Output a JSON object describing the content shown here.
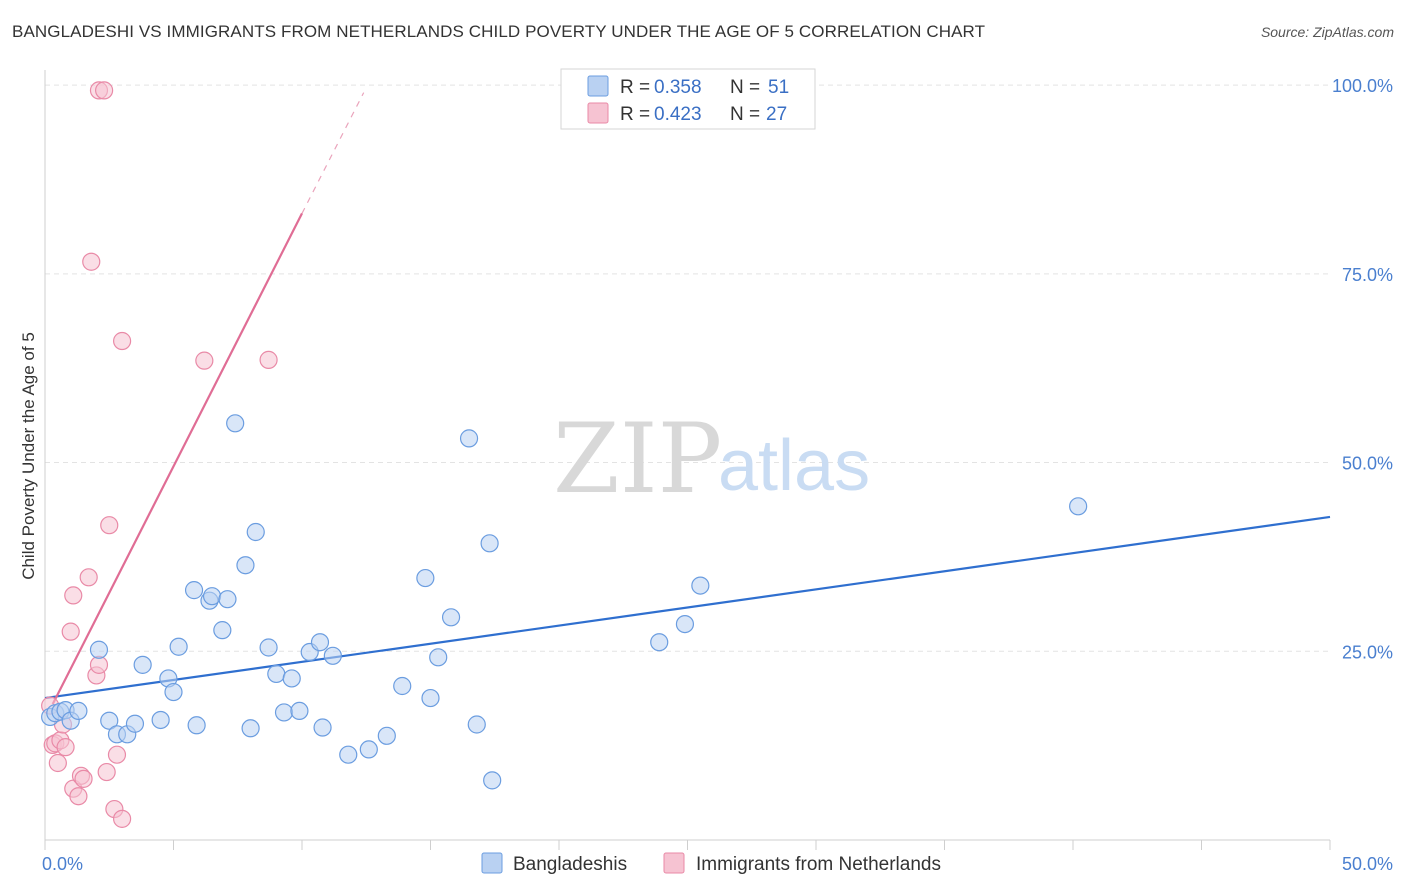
{
  "header": {
    "title": "BANGLADESHI VS IMMIGRANTS FROM NETHERLANDS CHILD POVERTY UNDER THE AGE OF 5 CORRELATION CHART",
    "source": "Source: ZipAtlas.com"
  },
  "watermark": {
    "zip": "ZIP",
    "atlas": "atlas"
  },
  "legend": {
    "series1": {
      "r_label": "R = ",
      "r_value": "0.358",
      "n_label": "N = ",
      "n_value": "51"
    },
    "series2": {
      "r_label": "R = ",
      "r_value": "0.423",
      "n_label": "N = ",
      "n_value": "27"
    }
  },
  "chart_data": {
    "type": "scatter",
    "title": "BANGLADESHI VS IMMIGRANTS FROM NETHERLANDS CHILD POVERTY UNDER THE AGE OF 5 CORRELATION CHART",
    "xlabel": "",
    "ylabel": "Child Poverty Under the Age of 5",
    "xlim": [
      0,
      50
    ],
    "ylim": [
      0,
      102
    ],
    "x_tick_labels": [
      {
        "value": 0,
        "label": "0.0%"
      },
      {
        "value": 50,
        "label": "50.0%"
      }
    ],
    "y_tick_labels": [
      {
        "value": 25,
        "label": "25.0%"
      },
      {
        "value": 50,
        "label": "50.0%"
      },
      {
        "value": 75,
        "label": "75.0%"
      },
      {
        "value": 100,
        "label": "100.0%"
      }
    ],
    "grid": true,
    "legend_position": "top-center",
    "series": [
      {
        "name": "Bangladeshis",
        "color": "#6b9de0",
        "fill": "#b9d1f2",
        "r": 0.358,
        "n": 51,
        "trend": {
          "x": [
            0,
            50
          ],
          "y": [
            18.8,
            42.8
          ]
        },
        "points": [
          [
            0.2,
            16.3
          ],
          [
            0.4,
            16.8
          ],
          [
            0.6,
            17.0
          ],
          [
            0.8,
            17.2
          ],
          [
            1.0,
            15.8
          ],
          [
            1.3,
            17.1
          ],
          [
            2.1,
            25.2
          ],
          [
            2.5,
            15.8
          ],
          [
            2.8,
            14.0
          ],
          [
            3.2,
            14.0
          ],
          [
            3.5,
            15.4
          ],
          [
            3.8,
            23.2
          ],
          [
            4.5,
            15.9
          ],
          [
            4.8,
            21.4
          ],
          [
            5.0,
            19.6
          ],
          [
            5.2,
            25.6
          ],
          [
            5.8,
            33.1
          ],
          [
            5.9,
            15.2
          ],
          [
            6.4,
            31.7
          ],
          [
            6.5,
            32.3
          ],
          [
            6.9,
            27.8
          ],
          [
            7.1,
            31.9
          ],
          [
            7.4,
            55.2
          ],
          [
            7.8,
            36.4
          ],
          [
            8.0,
            14.8
          ],
          [
            8.2,
            40.8
          ],
          [
            8.7,
            25.5
          ],
          [
            9.0,
            22.0
          ],
          [
            9.3,
            16.9
          ],
          [
            9.6,
            21.4
          ],
          [
            9.9,
            17.1
          ],
          [
            10.3,
            24.9
          ],
          [
            10.7,
            26.2
          ],
          [
            10.8,
            14.9
          ],
          [
            11.2,
            24.4
          ],
          [
            11.8,
            11.3
          ],
          [
            12.6,
            12.0
          ],
          [
            13.3,
            13.8
          ],
          [
            13.9,
            20.4
          ],
          [
            14.8,
            34.7
          ],
          [
            15.0,
            18.8
          ],
          [
            15.3,
            24.2
          ],
          [
            15.8,
            29.5
          ],
          [
            16.5,
            53.2
          ],
          [
            16.8,
            15.3
          ],
          [
            17.3,
            39.3
          ],
          [
            17.4,
            7.9
          ],
          [
            23.9,
            26.2
          ],
          [
            24.9,
            28.6
          ],
          [
            25.5,
            33.7
          ],
          [
            40.2,
            44.2
          ]
        ]
      },
      {
        "name": "Immigrants from Netherlands",
        "color": "#e98aa7",
        "fill": "#f6c3d2",
        "r": 0.423,
        "n": 27,
        "trend": {
          "x": [
            0.3,
            10.0
          ],
          "y": [
            18.0,
            83.0
          ]
        },
        "trend_dashed": {
          "x": [
            10.0,
            12.4
          ],
          "y": [
            83.0,
            99.0
          ]
        },
        "points": [
          [
            0.2,
            17.8
          ],
          [
            0.3,
            12.6
          ],
          [
            0.4,
            12.8
          ],
          [
            0.5,
            10.2
          ],
          [
            0.6,
            13.2
          ],
          [
            0.7,
            15.3
          ],
          [
            0.8,
            12.3
          ],
          [
            1.0,
            27.6
          ],
          [
            1.1,
            6.8
          ],
          [
            1.1,
            32.4
          ],
          [
            1.3,
            5.8
          ],
          [
            1.4,
            8.5
          ],
          [
            1.5,
            8.1
          ],
          [
            1.7,
            34.8
          ],
          [
            1.8,
            76.6
          ],
          [
            2.0,
            21.8
          ],
          [
            2.1,
            23.2
          ],
          [
            2.1,
            99.3
          ],
          [
            2.3,
            99.3
          ],
          [
            2.4,
            9.0
          ],
          [
            2.5,
            41.7
          ],
          [
            2.7,
            4.1
          ],
          [
            2.8,
            11.3
          ],
          [
            3.0,
            2.8
          ],
          [
            3.0,
            66.1
          ],
          [
            6.2,
            63.5
          ],
          [
            8.7,
            63.6
          ]
        ]
      }
    ]
  }
}
